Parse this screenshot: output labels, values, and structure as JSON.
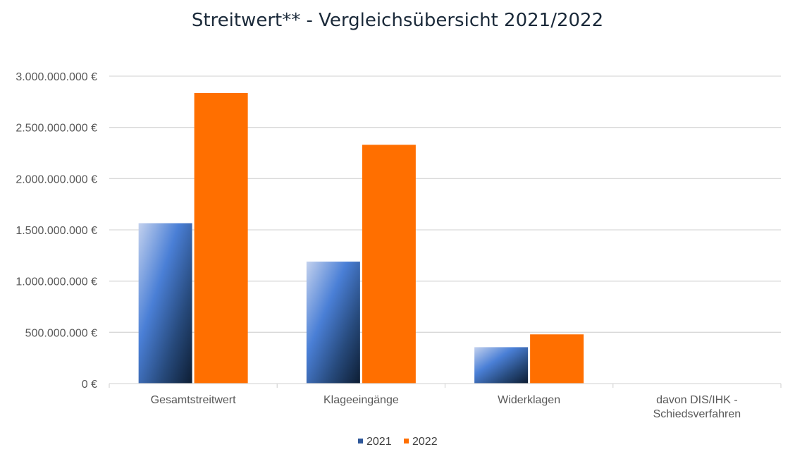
{
  "chart_data": {
    "type": "bar",
    "title": "Streitwert** - Vergleichsübersicht 2021/2022",
    "xlabel": "",
    "ylabel": "",
    "categories": [
      [
        "Gesamtstreitwert"
      ],
      [
        "Klageeingänge"
      ],
      [
        "Widerklagen"
      ],
      [
        "davon DIS/IHK -",
        "Schiedsverfahren"
      ]
    ],
    "series": [
      {
        "name": "2021",
        "values": [
          1565000000,
          1190000000,
          355000000,
          0
        ],
        "color": "#4a7fd6"
      },
      {
        "name": "2022",
        "values": [
          2835000000,
          2330000000,
          480000000,
          0
        ],
        "color": "#ff6f00"
      }
    ],
    "ylim": [
      0,
      3000000000
    ],
    "yticks": [
      0,
      500000000,
      1000000000,
      1500000000,
      2000000000,
      2500000000,
      3000000000
    ],
    "ytick_labels": [
      "0 €",
      "500.000.000 €",
      "1.000.000.000 €",
      "1.500.000.000 €",
      "2.000.000.000 €",
      "2.500.000.000 €",
      "3.000.000.000 €"
    ],
    "grid": true,
    "legend_position": "bottom"
  }
}
